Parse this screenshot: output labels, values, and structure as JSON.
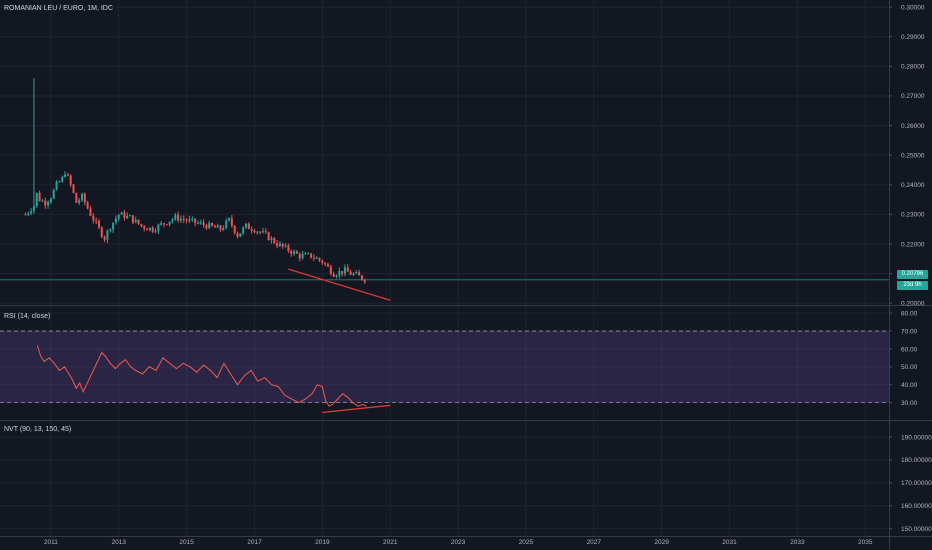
{
  "colors": {
    "background": "#131722",
    "grid": "#1f2430",
    "up_candle": "#26a69a",
    "down_candle": "#ef5350",
    "rsi_line": "#f05a4f",
    "rsi_band": "#7e57c2",
    "trendline": "#e53935",
    "price_line": "#26a69a",
    "text": "#b2b5be"
  },
  "chart_data": [
    {
      "type": "candlestick",
      "title": "ROMANIAN LEU / EURO, 1M, IDC",
      "y_ticks": [
        "0.30000",
        "0.29000",
        "0.28000",
        "0.27000",
        "0.26000",
        "0.25000",
        "0.24000",
        "0.23000",
        "0.22000",
        "0.21000",
        "0.20000"
      ],
      "ylim": [
        0.1994,
        0.3024
      ],
      "last_price": 0.2079,
      "last_price_label": "0.20796",
      "countdown_label": "23d 9h",
      "x_ticks": [
        "2011",
        "2013",
        "2015",
        "2017",
        "2019",
        "2021",
        "2023",
        "2025",
        "2027",
        "2029",
        "2031",
        "2033",
        "2035"
      ],
      "x_tick_years": [
        2011,
        2013,
        2015,
        2017,
        2019,
        2021,
        2023,
        2025,
        2027,
        2029,
        2031,
        2033,
        2035
      ],
      "xlim": [
        2009.5,
        2035.7
      ],
      "trendline": {
        "from": [
          2018.0,
          0.2115
        ],
        "to": [
          2021.0,
          0.201
        ]
      },
      "close_anchors": [
        [
          2010.25,
          0.23
        ],
        [
          2010.5,
          0.233
        ],
        [
          2010.58,
          0.237
        ],
        [
          2010.67,
          0.235
        ],
        [
          2010.83,
          0.234
        ],
        [
          2011.0,
          0.236
        ],
        [
          2011.17,
          0.24
        ],
        [
          2011.33,
          0.242
        ],
        [
          2011.42,
          0.2445
        ],
        [
          2011.58,
          0.24
        ],
        [
          2011.75,
          0.234
        ],
        [
          2011.92,
          0.236
        ],
        [
          2012.17,
          0.23
        ],
        [
          2012.42,
          0.225
        ],
        [
          2012.58,
          0.222
        ],
        [
          2012.75,
          0.226
        ],
        [
          2013.0,
          0.23
        ],
        [
          2013.33,
          0.229
        ],
        [
          2013.67,
          0.226
        ],
        [
          2014.0,
          0.225
        ],
        [
          2014.33,
          0.227
        ],
        [
          2014.67,
          0.229
        ],
        [
          2015.0,
          0.228
        ],
        [
          2015.33,
          0.227
        ],
        [
          2015.67,
          0.226
        ],
        [
          2016.0,
          0.225
        ],
        [
          2016.25,
          0.228
        ],
        [
          2016.5,
          0.223
        ],
        [
          2016.75,
          0.226
        ],
        [
          2017.0,
          0.225
        ],
        [
          2017.33,
          0.223
        ],
        [
          2017.67,
          0.22
        ],
        [
          2018.0,
          0.218
        ],
        [
          2018.33,
          0.216
        ],
        [
          2018.67,
          0.216
        ],
        [
          2019.0,
          0.214
        ],
        [
          2019.17,
          0.212
        ],
        [
          2019.33,
          0.21
        ],
        [
          2019.5,
          0.2105
        ],
        [
          2019.67,
          0.211
        ],
        [
          2019.83,
          0.21
        ],
        [
          2020.0,
          0.2095
        ],
        [
          2020.17,
          0.2085
        ],
        [
          2020.3,
          0.2079
        ]
      ],
      "spike": {
        "x": 2010.5,
        "high": 0.276
      }
    },
    {
      "type": "line",
      "title": "RSI (14, close)",
      "y_ticks": [
        "80.00",
        "70.00",
        "60.00",
        "50.00",
        "40.00",
        "30.00"
      ],
      "ylim": [
        20.3,
        84.0
      ],
      "band": [
        30,
        70
      ],
      "trendline": {
        "from": [
          2019.0,
          24.5
        ],
        "to": [
          2021.0,
          28.5
        ]
      },
      "series": [
        [
          2010.6,
          62
        ],
        [
          2010.7,
          56
        ],
        [
          2010.8,
          53
        ],
        [
          2010.95,
          55
        ],
        [
          2011.1,
          52
        ],
        [
          2011.25,
          48
        ],
        [
          2011.4,
          50
        ],
        [
          2011.6,
          44
        ],
        [
          2011.75,
          38
        ],
        [
          2011.85,
          41
        ],
        [
          2011.95,
          36
        ],
        [
          2012.1,
          42
        ],
        [
          2012.25,
          48
        ],
        [
          2012.4,
          54
        ],
        [
          2012.5,
          58
        ],
        [
          2012.6,
          56
        ],
        [
          2012.75,
          52
        ],
        [
          2012.9,
          49
        ],
        [
          2013.05,
          52
        ],
        [
          2013.2,
          54
        ],
        [
          2013.35,
          50
        ],
        [
          2013.5,
          48
        ],
        [
          2013.7,
          46
        ],
        [
          2013.9,
          50
        ],
        [
          2014.1,
          48
        ],
        [
          2014.3,
          55
        ],
        [
          2014.5,
          52
        ],
        [
          2014.7,
          49
        ],
        [
          2014.9,
          52
        ],
        [
          2015.1,
          50
        ],
        [
          2015.3,
          47
        ],
        [
          2015.5,
          51
        ],
        [
          2015.7,
          48
        ],
        [
          2015.9,
          44
        ],
        [
          2016.1,
          52
        ],
        [
          2016.3,
          46
        ],
        [
          2016.5,
          40
        ],
        [
          2016.7,
          45
        ],
        [
          2016.9,
          48
        ],
        [
          2017.1,
          42
        ],
        [
          2017.3,
          44
        ],
        [
          2017.5,
          40
        ],
        [
          2017.7,
          39
        ],
        [
          2017.9,
          34
        ],
        [
          2018.1,
          32
        ],
        [
          2018.3,
          30
        ],
        [
          2018.5,
          32
        ],
        [
          2018.7,
          35
        ],
        [
          2018.85,
          40
        ],
        [
          2019.0,
          39
        ],
        [
          2019.1,
          31
        ],
        [
          2019.2,
          28
        ],
        [
          2019.3,
          29
        ],
        [
          2019.45,
          32
        ],
        [
          2019.6,
          35
        ],
        [
          2019.75,
          33
        ],
        [
          2019.9,
          30
        ],
        [
          2020.05,
          28
        ],
        [
          2020.2,
          29
        ],
        [
          2020.3,
          28
        ]
      ]
    },
    {
      "type": "line",
      "title": "NVT (90, 13, 150, 45)",
      "y_ticks": [
        "190.00000",
        "180.00000",
        "170.00000",
        "160.00000",
        "150.00000"
      ],
      "ylim": [
        146.8,
        197.0
      ],
      "series": []
    }
  ]
}
